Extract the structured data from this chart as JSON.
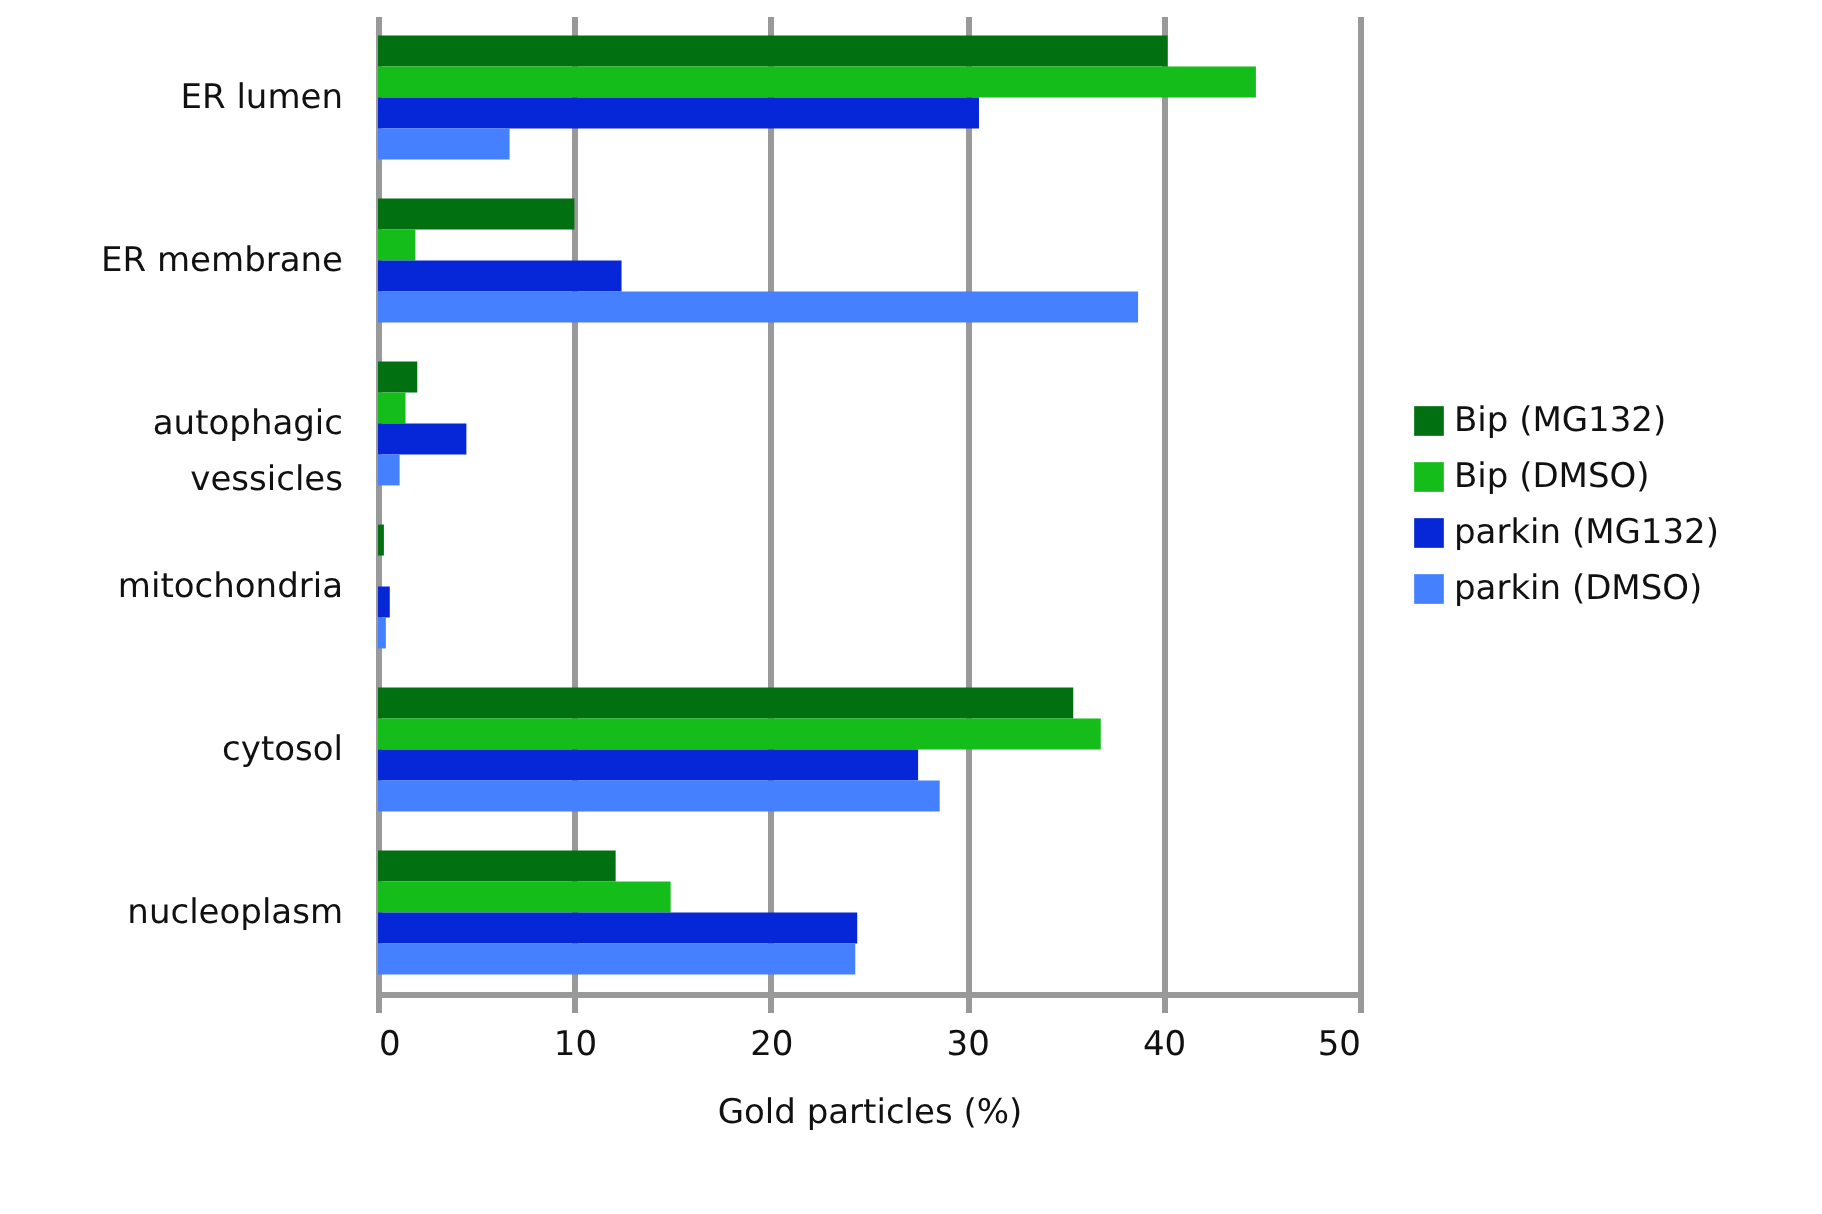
{
  "chart_data": {
    "type": "bar",
    "orientation": "horizontal",
    "xlabel": "Gold particles (%)",
    "categories": [
      "ER lumen",
      "ER membrane",
      "autophagic vessicles",
      "mitochondria",
      "cytosol",
      "nucleoplasm"
    ],
    "series": [
      {
        "name": "Bip (MG132)",
        "color": "#007010",
        "values": [
          40.2,
          10.0,
          2.0,
          0.3,
          35.4,
          12.1
        ]
      },
      {
        "name": "Bip (DMSO)",
        "color": "#14bd19",
        "values": [
          44.7,
          1.9,
          1.4,
          null,
          36.8,
          14.9
        ]
      },
      {
        "name": "parkin (MG132)",
        "color": "#0627d8",
        "values": [
          30.6,
          12.4,
          4.5,
          0.6,
          27.5,
          24.4
        ]
      },
      {
        "name": "parkin (DMSO)",
        "color": "#4480ff",
        "values": [
          6.7,
          38.7,
          1.1,
          0.4,
          28.6,
          24.3
        ]
      }
    ],
    "xlim": [
      0,
      50
    ],
    "xticks": [
      0,
      10,
      20,
      30,
      40,
      50
    ],
    "grid": "x",
    "legend": "right"
  }
}
